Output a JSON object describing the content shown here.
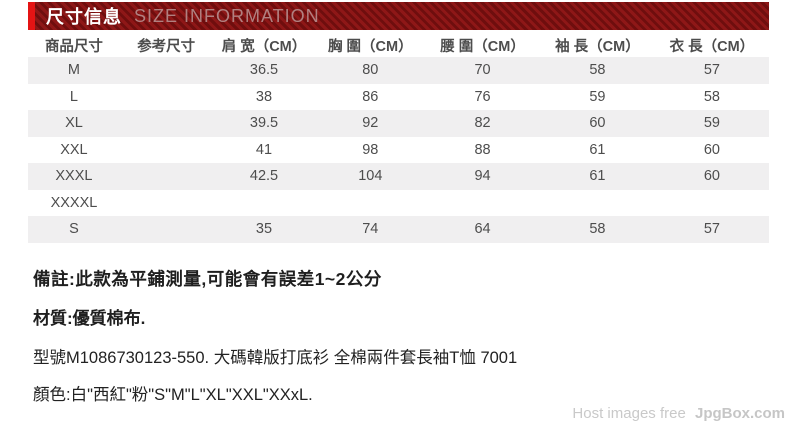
{
  "banner": {
    "title_zh": "尺寸信息",
    "title_en": "SIZE INFORMATION",
    "accent_color": "#e41414",
    "stripe_dark": "#6f0e0e",
    "stripe_light": "#8e1717"
  },
  "table": {
    "headers": [
      "商品尺寸",
      "参考尺寸",
      "肩 宽（CM）",
      "胸 圍（CM）",
      "腰 圍（CM）",
      "袖 長（CM）",
      "衣 長（CM）"
    ],
    "rows": [
      [
        "M",
        "",
        "36.5",
        "80",
        "70",
        "58",
        "57"
      ],
      [
        "L",
        "",
        "38",
        "86",
        "76",
        "59",
        "58"
      ],
      [
        "XL",
        "",
        "39.5",
        "92",
        "82",
        "60",
        "59"
      ],
      [
        "XXL",
        "",
        "41",
        "98",
        "88",
        "61",
        "60"
      ],
      [
        "XXXL",
        "",
        "42.5",
        "104",
        "94",
        "61",
        "60"
      ],
      [
        "XXXXL",
        "",
        "",
        "",
        "",
        "",
        ""
      ],
      [
        "S",
        "",
        "35",
        "74",
        "64",
        "58",
        "57"
      ]
    ],
    "zebra_color": "#f0eff0"
  },
  "notes": {
    "measure": "備註:此款為平鋪測量,可能會有誤差1~2公分",
    "material": "材質:優質棉布.",
    "model": "型號M1086730123-550.  大碼韓版打底衫  全棉兩件套長袖T恤  7001",
    "color": "顏色:白\"西紅\"粉\"S\"M\"L\"XL\"XXL\"XXxL."
  },
  "watermark": {
    "prefix": "Host images free",
    "brand": "JpgBox.com"
  }
}
